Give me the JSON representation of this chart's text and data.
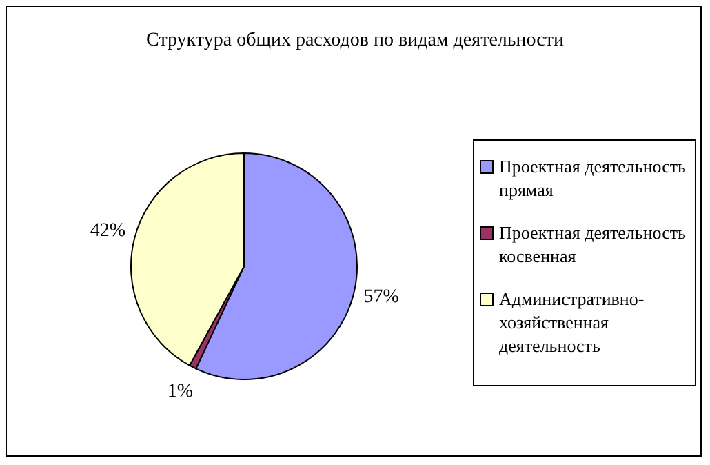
{
  "chart_data": {
    "type": "pie",
    "title": "Структура общих расходов по видам деятельности",
    "categories": [
      "Проектная деятельность прямая",
      "Проектная деятельность косвенная",
      "Административно-хозяйственная деятельность"
    ],
    "values": [
      57,
      1,
      42
    ],
    "colors": [
      "#9999ff",
      "#993366",
      "#ffffcc"
    ],
    "value_labels": [
      "57%",
      "1%",
      "42%"
    ],
    "legend": "right"
  }
}
